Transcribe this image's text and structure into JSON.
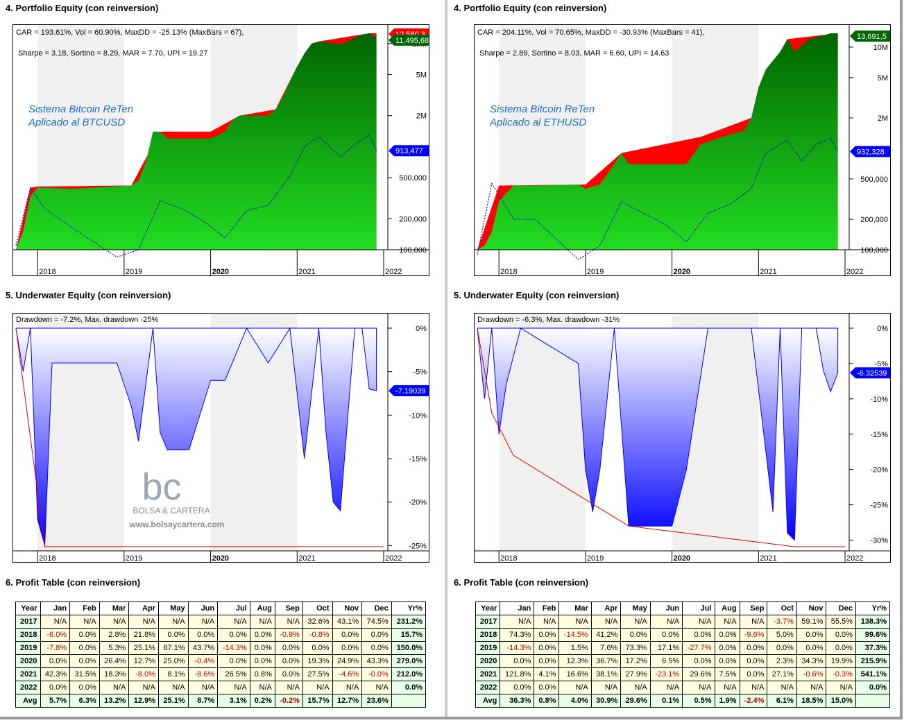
{
  "panels": [
    {
      "id": "left",
      "equity": {
        "section_title": "4. Portfolio Equity (con reinversion)",
        "stats_line1": "CAR = 193.61%, Vol = 60.90%, MaxDD = -25.13% (MaxBars = 67),",
        "stats_line2": "Sharpe = 3.18, Sortino = 8.29, MAR = 7.70, UPI = 19.27",
        "watermark_line1": "Sistema Bitcoin ReTen",
        "watermark_line2": "Aplicado al BTCUSD",
        "y_ticks": [
          "10M",
          "5M",
          "2M",
          "500,000",
          "200,000",
          "100,000"
        ],
        "x_ticks": [
          "2018",
          "2019",
          "2020",
          "2021",
          "2022"
        ],
        "last_equity_label": "11,495,68",
        "last_peak_label": "12,580,3",
        "last_price_label": "913,477"
      },
      "underwater": {
        "section_title": "5. Underwater Equity (con reinversion)",
        "stats": "Drawdown = -7.2%, Max. drawdown -25%",
        "y_ticks": [
          "0%",
          "-5%",
          "-10%",
          "-15%",
          "-20%",
          "-25%"
        ],
        "x_ticks": [
          "2018",
          "2019",
          "2020",
          "2021",
          "2022"
        ],
        "last_label": "-7.19039",
        "logo_text": "bc",
        "logo_caption": "BOLSA & CARTERA",
        "logo_url": "www.bolsaycartera.com"
      },
      "profit": {
        "section_title": "6. Profit Table (con reinversion)",
        "headers": [
          "Year",
          "Jan",
          "Feb",
          "Mar",
          "Apr",
          "May",
          "Jun",
          "Jul",
          "Aug",
          "Sep",
          "Oct",
          "Nov",
          "Dec",
          "Yr%"
        ],
        "rows": [
          [
            "2017",
            "N/A",
            "N/A",
            "N/A",
            "N/A",
            "N/A",
            "N/A",
            "N/A",
            "N/A",
            "N/A",
            "32.6%",
            "43.1%",
            "74.5%",
            "231.2%"
          ],
          [
            "2018",
            "-6.0%",
            "0.0%",
            "2.8%",
            "21.8%",
            "0.0%",
            "0.0%",
            "0.0%",
            "0.0%",
            "-0.9%",
            "-0.8%",
            "0.0%",
            "0.0%",
            "15.7%"
          ],
          [
            "2019",
            "-7.8%",
            "0.0%",
            "5.3%",
            "25.1%",
            "67.1%",
            "43.7%",
            "-14.3%",
            "0.0%",
            "0.0%",
            "0.0%",
            "0.0%",
            "0.0%",
            "150.0%"
          ],
          [
            "2020",
            "0.0%",
            "0.0%",
            "26.4%",
            "12.7%",
            "25.0%",
            "-0.4%",
            "0.0%",
            "0.0%",
            "0.0%",
            "19.3%",
            "24.9%",
            "43.3%",
            "279.0%"
          ],
          [
            "2021",
            "42.3%",
            "31.5%",
            "18.3%",
            "-8.0%",
            "8.1%",
            "-8.6%",
            "26.5%",
            "0.8%",
            "0.0%",
            "27.5%",
            "-4.6%",
            "-0.0%",
            "212.0%"
          ],
          [
            "2022",
            "0.0%",
            "0.0%",
            "N/A",
            "N/A",
            "N/A",
            "N/A",
            "N/A",
            "N/A",
            "N/A",
            "N/A",
            "N/A",
            "N/A",
            "0.0%"
          ],
          [
            "Avg",
            "5.7%",
            "6.3%",
            "13.2%",
            "12.9%",
            "25.1%",
            "8.7%",
            "3.1%",
            "0.2%",
            "-0.2%",
            "15.7%",
            "12.7%",
            "23.6%",
            ""
          ]
        ]
      }
    },
    {
      "id": "right",
      "equity": {
        "section_title": "4. Portfolio Equity (con reinversion)",
        "stats_line1": "CAR = 204.11%, Vol = 70.65%, MaxDD = -30.93% (MaxBars = 41),",
        "stats_line2": "Sharpe = 2.89, Sortino = 8.03, MAR = 6.60, UPI = 14.63",
        "watermark_line1": "Sistema Bitcoin ReTen",
        "watermark_line2": "Aplicado al ETHUSD",
        "y_ticks": [
          "10M",
          "5M",
          "2M",
          "500,000",
          "200,000",
          "100,000"
        ],
        "x_ticks": [
          "2018",
          "2019",
          "2020",
          "2021",
          "2022"
        ],
        "last_equity_label": "13,691,5",
        "last_peak_label": "",
        "last_price_label": "932,328"
      },
      "underwater": {
        "section_title": "5. Underwater Equity (con reinversion)",
        "stats": "Drawdown = -6.3%, Max. drawdown -31%",
        "y_ticks": [
          "0%",
          "-5%",
          "-10%",
          "-15%",
          "-20%",
          "-25%",
          "-30%"
        ],
        "x_ticks": [
          "2018",
          "2019",
          "2020",
          "2021",
          "2022"
        ],
        "last_label": "-6.32539",
        "logo_text": "",
        "logo_caption": "",
        "logo_url": ""
      },
      "profit": {
        "section_title": "6. Profit Table (con reinversion)",
        "headers": [
          "Year",
          "Jan",
          "Feb",
          "Mar",
          "Apr",
          "May",
          "Jun",
          "Jul",
          "Aug",
          "Sep",
          "Oct",
          "Nov",
          "Dec",
          "Yr%"
        ],
        "rows": [
          [
            "2017",
            "N/A",
            "N/A",
            "N/A",
            "N/A",
            "N/A",
            "N/A",
            "N/A",
            "N/A",
            "N/A",
            "-3.7%",
            "59.1%",
            "55.5%",
            "138.3%"
          ],
          [
            "2018",
            "74.3%",
            "0.0%",
            "-14.5%",
            "41.2%",
            "0.0%",
            "0.0%",
            "0.0%",
            "0.0%",
            "-9.6%",
            "5.0%",
            "0.0%",
            "0.0%",
            "99.6%"
          ],
          [
            "2019",
            "-14.3%",
            "0.0%",
            "1.5%",
            "7.6%",
            "73.3%",
            "17.1%",
            "-27.7%",
            "0.0%",
            "0.0%",
            "0.0%",
            "0.0%",
            "0.0%",
            "37.3%"
          ],
          [
            "2020",
            "0.0%",
            "0.0%",
            "12.3%",
            "36.7%",
            "17.2%",
            "6.5%",
            "0.0%",
            "0.0%",
            "0.0%",
            "2.3%",
            "34.3%",
            "19.9%",
            "215.9%"
          ],
          [
            "2021",
            "121.8%",
            "4.1%",
            "16.6%",
            "38.1%",
            "27.9%",
            "-23.1%",
            "29.6%",
            "7.5%",
            "0.0%",
            "27.1%",
            "-0.6%",
            "-0.3%",
            "541.1%"
          ],
          [
            "2022",
            "0.0%",
            "0.0%",
            "N/A",
            "N/A",
            "N/A",
            "N/A",
            "N/A",
            "N/A",
            "N/A",
            "N/A",
            "N/A",
            "N/A",
            "0.0%"
          ],
          [
            "Avg",
            "36.3%",
            "0.8%",
            "4.0%",
            "30.9%",
            "29.6%",
            "0.1%",
            "0.5%",
            "1.9%",
            "-2.4%",
            "6.1%",
            "18.5%",
            "15.0%",
            ""
          ]
        ]
      }
    }
  ],
  "colors": {
    "equity_green_top": "#006400",
    "equity_green_bottom": "#22dd22",
    "drawdown_red": "#ff0000",
    "price_blue": "#0000cc",
    "underwater_blue": "#0000ff",
    "maxdd_red": "#dd0000",
    "label_blue": "#0000ff",
    "label_green": "#006400",
    "watermark_text": "#1a6fc4",
    "alt_band": "#f0f0f0"
  },
  "chart_data": [
    {
      "type": "area",
      "title": "4. Portfolio Equity (con reinversion)",
      "instrument": "BTCUSD",
      "y_scale": "log",
      "ylim": [
        100000,
        12580000
      ],
      "x_range": [
        "2017-10",
        "2022-01"
      ],
      "series": [
        {
          "name": "Equity",
          "x": [
            "2017-10",
            "2017-11",
            "2017-12",
            "2018-01",
            "2018-06",
            "2019-02",
            "2019-03",
            "2019-04",
            "2019-05",
            "2019-06",
            "2019-07",
            "2020-01",
            "2020-03",
            "2020-04",
            "2020-05",
            "2020-09",
            "2020-10",
            "2020-11",
            "2020-12",
            "2021-01",
            "2021-02",
            "2021-03",
            "2021-04",
            "2021-07",
            "2021-08",
            "2021-10",
            "2021-11",
            "2021-12"
          ],
          "values": [
            100000,
            150000,
            330000,
            400000,
            390000,
            420000,
            470000,
            700000,
            1400000,
            1400000,
            1200000,
            1200000,
            1400000,
            1800000,
            2000000,
            2000000,
            2300000,
            3000000,
            4300000,
            6000000,
            8000000,
            10000000,
            10500000,
            9800000,
            10500000,
            12200000,
            12580000,
            11495680
          ]
        },
        {
          "name": "Equity peak",
          "x": [
            "2017-10",
            "2017-12",
            "2018-01",
            "2019-02",
            "2019-06",
            "2020-01",
            "2020-05",
            "2020-10",
            "2021-01",
            "2021-04",
            "2021-11",
            "2021-12"
          ],
          "values": [
            100000,
            400000,
            410000,
            420000,
            1400000,
            1400000,
            2000000,
            2300000,
            6000000,
            10500000,
            12580000,
            12580000
          ]
        },
        {
          "name": "Price",
          "x": [
            "2017-10",
            "2017-12",
            "2018-02",
            "2018-06",
            "2018-12",
            "2019-03",
            "2019-06",
            "2019-09",
            "2019-12",
            "2020-03",
            "2020-06",
            "2020-09",
            "2020-12",
            "2021-02",
            "2021-04",
            "2021-07",
            "2021-09",
            "2021-11",
            "2021-12"
          ],
          "values": [
            110000,
            400000,
            250000,
            160000,
            85000,
            100000,
            300000,
            250000,
            190000,
            130000,
            240000,
            270000,
            520000,
            1000000,
            1250000,
            800000,
            1050000,
            1300000,
            913477
          ]
        }
      ]
    },
    {
      "type": "area",
      "title": "5. Underwater Equity (con reinversion)",
      "instrument": "BTCUSD",
      "ylim": [
        -25.13,
        0
      ],
      "x_range": [
        "2017-10",
        "2022-01"
      ],
      "series": [
        {
          "name": "Drawdown",
          "x": [
            "2017-10",
            "2017-11",
            "2017-12",
            "2018-01",
            "2018-02",
            "2018-03",
            "2018-06",
            "2018-12",
            "2019-02",
            "2019-03",
            "2019-05",
            "2019-06",
            "2019-07",
            "2019-08",
            "2019-10",
            "2020-01",
            "2020-03",
            "2020-06",
            "2020-09",
            "2020-12",
            "2021-02",
            "2021-04",
            "2021-05",
            "2021-06",
            "2021-07",
            "2021-09",
            "2021-10",
            "2021-11",
            "2021-12"
          ],
          "values": [
            0,
            -5,
            0,
            -22,
            -25,
            -4,
            -4,
            -4,
            -9,
            -13,
            0,
            -12,
            -14,
            -14,
            -14,
            -6,
            -6,
            0,
            -4,
            0,
            -15,
            0,
            -12,
            -20,
            -21,
            0,
            0,
            -7,
            -7.19039
          ]
        },
        {
          "name": "Max drawdown",
          "x": [
            "2017-10",
            "2018-02",
            "2022-01"
          ],
          "values": [
            0,
            -25.13,
            -25.13
          ]
        }
      ]
    },
    {
      "type": "area",
      "title": "4. Portfolio Equity (con reinversion)",
      "instrument": "ETHUSD",
      "y_scale": "log",
      "ylim": [
        100000,
        13691500
      ],
      "x_range": [
        "2017-10",
        "2022-01"
      ],
      "series": [
        {
          "name": "Equity",
          "x": [
            "2017-10",
            "2017-11",
            "2017-12",
            "2018-01",
            "2018-03",
            "2018-06",
            "2018-12",
            "2019-01",
            "2019-03",
            "2019-05",
            "2019-06",
            "2019-07",
            "2020-03",
            "2020-05",
            "2020-08",
            "2020-11",
            "2020-12",
            "2021-01",
            "2021-02",
            "2021-04",
            "2021-05",
            "2021-06",
            "2021-08",
            "2021-10",
            "2021-11",
            "2021-12"
          ],
          "values": [
            100000,
            110000,
            150000,
            300000,
            430000,
            430000,
            440000,
            400000,
            440000,
            700000,
            900000,
            700000,
            700000,
            1100000,
            1300000,
            1500000,
            2000000,
            4000000,
            6000000,
            9000000,
            12000000,
            9000000,
            12000000,
            13000000,
            13691500,
            13691500
          ]
        },
        {
          "name": "Equity peak",
          "x": [
            "2017-10",
            "2018-01",
            "2019-01",
            "2019-06",
            "2020-05",
            "2020-12",
            "2021-05",
            "2021-12"
          ],
          "values": [
            100000,
            430000,
            440000,
            900000,
            1300000,
            2000000,
            12000000,
            13691500
          ]
        },
        {
          "name": "Price",
          "x": [
            "2017-10",
            "2017-12",
            "2018-01",
            "2018-03",
            "2018-06",
            "2018-12",
            "2019-03",
            "2019-06",
            "2019-09",
            "2019-12",
            "2020-03",
            "2020-06",
            "2020-09",
            "2020-12",
            "2021-02",
            "2021-05",
            "2021-07",
            "2021-09",
            "2021-11",
            "2021-12"
          ],
          "values": [
            90000,
            450000,
            350000,
            200000,
            200000,
            80000,
            110000,
            300000,
            230000,
            180000,
            120000,
            230000,
            280000,
            400000,
            900000,
            1200000,
            750000,
            1100000,
            1250000,
            932328
          ]
        }
      ]
    },
    {
      "type": "area",
      "title": "5. Underwater Equity (con reinversion)",
      "instrument": "ETHUSD",
      "ylim": [
        -30.93,
        0
      ],
      "x_range": [
        "2017-10",
        "2022-01"
      ],
      "series": [
        {
          "name": "Drawdown",
          "x": [
            "2017-10",
            "2017-11",
            "2017-12",
            "2018-01",
            "2018-02",
            "2018-04",
            "2018-12",
            "2019-01",
            "2019-02",
            "2019-03",
            "2019-05",
            "2019-07",
            "2020-01",
            "2020-03",
            "2020-06",
            "2020-10",
            "2020-12",
            "2021-03",
            "2021-04",
            "2021-05",
            "2021-06",
            "2021-07",
            "2021-09",
            "2021-10",
            "2021-11",
            "2021-12"
          ],
          "values": [
            0,
            -10,
            0,
            -15,
            -8,
            0,
            -5,
            -20,
            -26,
            -20,
            0,
            -28,
            -28,
            -20,
            0,
            0,
            0,
            -26,
            0,
            -29,
            -30,
            0,
            0,
            -6,
            -9,
            -6.32539
          ]
        },
        {
          "name": "Max drawdown",
          "x": [
            "2017-10",
            "2017-12",
            "2018-03",
            "2019-07",
            "2021-06",
            "2022-01"
          ],
          "values": [
            0,
            -12,
            -18,
            -28,
            -30.93,
            -30.93
          ]
        }
      ]
    }
  ]
}
